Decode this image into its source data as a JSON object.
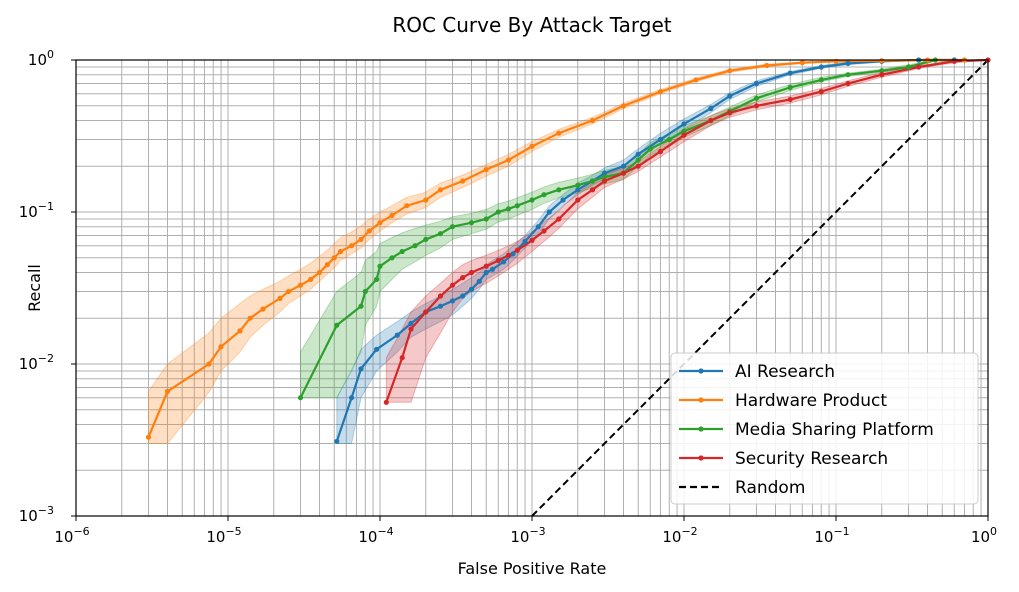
{
  "chart_data": {
    "type": "line",
    "title": "ROC Curve By Attack Target",
    "xlabel": "False Positive Rate",
    "ylabel": "Recall",
    "xscale": "log",
    "yscale": "log",
    "xlim": [
      1e-06,
      1
    ],
    "ylim": [
      0.001,
      1
    ],
    "grid": true,
    "legend_position": "lower-right",
    "x_ticks": [
      {
        "value": 1e-06,
        "base": "10",
        "exp": "−6"
      },
      {
        "value": 1e-05,
        "base": "10",
        "exp": "−5"
      },
      {
        "value": 0.0001,
        "base": "10",
        "exp": "−4"
      },
      {
        "value": 0.001,
        "base": "10",
        "exp": "−3"
      },
      {
        "value": 0.01,
        "base": "10",
        "exp": "−2"
      },
      {
        "value": 0.1,
        "base": "10",
        "exp": "−1"
      },
      {
        "value": 1,
        "base": "10",
        "exp": "0"
      }
    ],
    "y_ticks": [
      {
        "value": 0.001,
        "base": "10",
        "exp": "−3"
      },
      {
        "value": 0.01,
        "base": "10",
        "exp": "−2"
      },
      {
        "value": 0.1,
        "base": "10",
        "exp": "−1"
      },
      {
        "value": 1,
        "base": "10",
        "exp": "0"
      }
    ],
    "series": [
      {
        "name": "AI Research",
        "color": "#1f77b4",
        "x": [
          5.2e-05,
          6.5e-05,
          7.5e-05,
          9.5e-05,
          0.00013,
          0.00016,
          0.0002,
          0.00025,
          0.0003,
          0.00035,
          0.0004,
          0.00045,
          0.0005,
          0.00055,
          0.00065,
          0.00075,
          0.0009,
          0.0011,
          0.0013,
          0.0016,
          0.002,
          0.0025,
          0.003,
          0.004,
          0.005,
          0.007,
          0.01,
          0.015,
          0.02,
          0.03,
          0.05,
          0.08,
          0.12,
          0.2,
          0.35,
          0.6
        ],
        "y": [
          0.0031,
          0.006,
          0.0093,
          0.0125,
          0.0155,
          0.0185,
          0.022,
          0.024,
          0.026,
          0.028,
          0.031,
          0.035,
          0.04,
          0.042,
          0.047,
          0.053,
          0.064,
          0.08,
          0.1,
          0.12,
          0.14,
          0.16,
          0.18,
          0.2,
          0.24,
          0.3,
          0.38,
          0.48,
          0.58,
          0.7,
          0.82,
          0.9,
          0.95,
          0.98,
          1.0,
          1.0
        ],
        "lower": [
          0.003,
          0.003,
          0.006,
          0.009,
          0.012,
          0.015,
          0.017,
          0.019,
          0.021,
          0.024,
          0.027,
          0.031,
          0.036,
          0.038,
          0.042,
          0.048,
          0.058,
          0.072,
          0.09,
          0.11,
          0.13,
          0.15,
          0.165,
          0.185,
          0.22,
          0.28,
          0.35,
          0.45,
          0.55,
          0.67,
          0.8,
          0.88,
          0.93,
          0.97,
          0.99,
          0.99
        ],
        "upper": [
          0.006,
          0.009,
          0.0125,
          0.0155,
          0.019,
          0.022,
          0.025,
          0.028,
          0.031,
          0.034,
          0.037,
          0.04,
          0.045,
          0.048,
          0.053,
          0.06,
          0.07,
          0.088,
          0.11,
          0.13,
          0.155,
          0.175,
          0.195,
          0.22,
          0.26,
          0.33,
          0.41,
          0.51,
          0.61,
          0.73,
          0.84,
          0.92,
          0.97,
          0.99,
          1.0,
          1.0
        ]
      },
      {
        "name": "Hardware Product",
        "color": "#ff7f0e",
        "x": [
          3e-06,
          4e-06,
          7.5e-06,
          9e-06,
          1.2e-05,
          1.4e-05,
          1.7e-05,
          2.2e-05,
          2.5e-05,
          3e-05,
          3.5e-05,
          4e-05,
          4.5e-05,
          5e-05,
          5.5e-05,
          6.5e-05,
          7.5e-05,
          8.5e-05,
          0.0001,
          0.00012,
          0.00015,
          0.0002,
          0.00025,
          0.00035,
          0.0005,
          0.0007,
          0.001,
          0.0015,
          0.0025,
          0.004,
          0.007,
          0.012,
          0.02,
          0.035,
          0.06,
          0.1,
          0.2,
          0.4,
          0.7
        ],
        "y": [
          0.0033,
          0.0066,
          0.01,
          0.013,
          0.0165,
          0.02,
          0.023,
          0.027,
          0.03,
          0.033,
          0.036,
          0.04,
          0.045,
          0.05,
          0.055,
          0.06,
          0.066,
          0.075,
          0.085,
          0.095,
          0.11,
          0.12,
          0.14,
          0.16,
          0.19,
          0.22,
          0.27,
          0.33,
          0.4,
          0.5,
          0.62,
          0.74,
          0.85,
          0.92,
          0.96,
          0.98,
          0.99,
          1.0,
          1.0
        ],
        "lower": [
          0.003,
          0.003,
          0.0065,
          0.009,
          0.012,
          0.015,
          0.018,
          0.022,
          0.025,
          0.028,
          0.031,
          0.035,
          0.039,
          0.043,
          0.048,
          0.053,
          0.058,
          0.066,
          0.075,
          0.085,
          0.097,
          0.107,
          0.125,
          0.145,
          0.172,
          0.2,
          0.25,
          0.31,
          0.38,
          0.48,
          0.6,
          0.72,
          0.83,
          0.9,
          0.95,
          0.97,
          0.985,
          0.99,
          0.99
        ],
        "upper": [
          0.0066,
          0.01,
          0.016,
          0.02,
          0.025,
          0.028,
          0.031,
          0.035,
          0.038,
          0.042,
          0.046,
          0.051,
          0.056,
          0.062,
          0.068,
          0.074,
          0.081,
          0.09,
          0.1,
          0.11,
          0.125,
          0.135,
          0.155,
          0.175,
          0.205,
          0.24,
          0.29,
          0.35,
          0.42,
          0.52,
          0.64,
          0.76,
          0.87,
          0.94,
          0.97,
          0.99,
          1.0,
          1.0,
          1.0
        ]
      },
      {
        "name": "Media Sharing Platform",
        "color": "#2ca02c",
        "x": [
          3e-05,
          5.2e-05,
          7.5e-05,
          8e-05,
          9.5e-05,
          0.0001,
          0.00012,
          0.00014,
          0.00017,
          0.0002,
          0.00025,
          0.0003,
          0.0004,
          0.0005,
          0.0006,
          0.0007,
          0.0008,
          0.001,
          0.0012,
          0.0015,
          0.002,
          0.0025,
          0.003,
          0.004,
          0.005,
          0.006,
          0.008,
          0.01,
          0.015,
          0.02,
          0.03,
          0.05,
          0.08,
          0.12,
          0.2,
          0.3,
          0.45
        ],
        "y": [
          0.006,
          0.018,
          0.024,
          0.03,
          0.036,
          0.044,
          0.05,
          0.055,
          0.06,
          0.066,
          0.072,
          0.08,
          0.085,
          0.09,
          0.1,
          0.105,
          0.11,
          0.12,
          0.13,
          0.14,
          0.15,
          0.16,
          0.17,
          0.18,
          0.22,
          0.26,
          0.3,
          0.34,
          0.4,
          0.46,
          0.56,
          0.66,
          0.74,
          0.8,
          0.85,
          0.9,
          1.0
        ],
        "lower": [
          0.006,
          0.006,
          0.012,
          0.018,
          0.024,
          0.03,
          0.036,
          0.042,
          0.047,
          0.052,
          0.058,
          0.066,
          0.072,
          0.077,
          0.086,
          0.09,
          0.095,
          0.104,
          0.114,
          0.124,
          0.134,
          0.144,
          0.153,
          0.163,
          0.2,
          0.235,
          0.27,
          0.31,
          0.37,
          0.43,
          0.53,
          0.63,
          0.72,
          0.78,
          0.83,
          0.88,
          0.99
        ],
        "upper": [
          0.012,
          0.03,
          0.04,
          0.048,
          0.055,
          0.062,
          0.068,
          0.073,
          0.078,
          0.082,
          0.087,
          0.093,
          0.098,
          0.104,
          0.113,
          0.118,
          0.124,
          0.135,
          0.146,
          0.157,
          0.167,
          0.177,
          0.188,
          0.2,
          0.24,
          0.285,
          0.33,
          0.37,
          0.43,
          0.49,
          0.59,
          0.69,
          0.77,
          0.82,
          0.87,
          0.93,
          1.0
        ]
      },
      {
        "name": "Security Research",
        "color": "#d62728",
        "x": [
          0.00011,
          0.00014,
          0.00016,
          0.0002,
          0.00025,
          0.0003,
          0.00035,
          0.0004,
          0.0005,
          0.0006,
          0.0007,
          0.0008,
          0.001,
          0.0012,
          0.0015,
          0.002,
          0.0025,
          0.003,
          0.004,
          0.005,
          0.007,
          0.01,
          0.015,
          0.02,
          0.03,
          0.05,
          0.08,
          0.12,
          0.2,
          0.35,
          0.6,
          1.0
        ],
        "y": [
          0.0056,
          0.011,
          0.017,
          0.022,
          0.028,
          0.033,
          0.037,
          0.04,
          0.044,
          0.048,
          0.052,
          0.056,
          0.065,
          0.075,
          0.09,
          0.12,
          0.14,
          0.16,
          0.18,
          0.2,
          0.25,
          0.32,
          0.4,
          0.45,
          0.5,
          0.55,
          0.62,
          0.7,
          0.8,
          0.9,
          0.98,
          1.0
        ],
        "lower": [
          0.0056,
          0.0056,
          0.0056,
          0.011,
          0.016,
          0.022,
          0.027,
          0.03,
          0.034,
          0.038,
          0.042,
          0.046,
          0.055,
          0.064,
          0.078,
          0.105,
          0.125,
          0.145,
          0.165,
          0.185,
          0.23,
          0.29,
          0.37,
          0.42,
          0.47,
          0.52,
          0.59,
          0.67,
          0.77,
          0.88,
          0.96,
          1.0
        ],
        "upper": [
          0.011,
          0.017,
          0.022,
          0.028,
          0.034,
          0.04,
          0.045,
          0.048,
          0.052,
          0.056,
          0.06,
          0.064,
          0.074,
          0.086,
          0.102,
          0.135,
          0.155,
          0.175,
          0.195,
          0.215,
          0.27,
          0.35,
          0.43,
          0.48,
          0.53,
          0.58,
          0.65,
          0.73,
          0.83,
          0.92,
          1.0,
          1.0
        ]
      },
      {
        "name": "Random",
        "color": "#000000",
        "dashed": true,
        "x": [
          0.001,
          1
        ],
        "y": [
          0.001,
          1
        ]
      }
    ]
  }
}
